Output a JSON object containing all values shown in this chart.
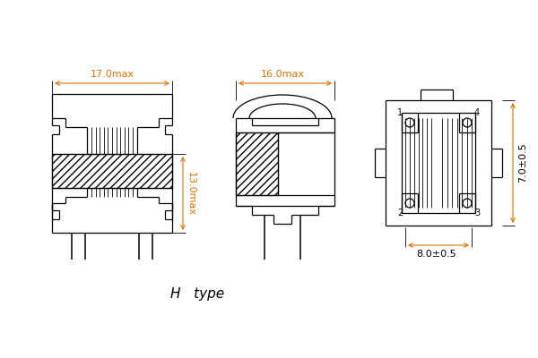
{
  "bg_color": "#ffffff",
  "line_color": "#000000",
  "dim_17": "17.0max",
  "dim_16": "16.0max",
  "dim_13": "13.0max",
  "dim_7": "7.0±0.5",
  "dim_8": "8.0±0.5",
  "title": "H   type",
  "lw": 0.9,
  "lw_thin": 0.6,
  "lw_pin": 1.1,
  "dim_color": "#e07000",
  "line_color2": "#333333"
}
